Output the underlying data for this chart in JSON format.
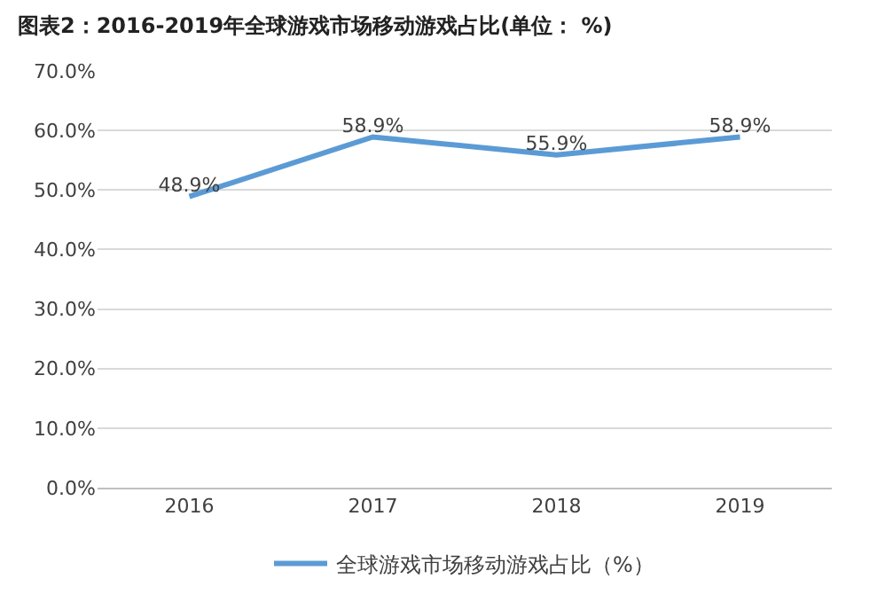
{
  "chart_data": {
    "type": "line",
    "title": "图表2：2016-2019年全球游戏市场移动游戏占比(单位： %)",
    "categories": [
      "2016",
      "2017",
      "2018",
      "2019"
    ],
    "series": [
      {
        "name": "全球游戏市场移动游戏占比（%）",
        "color": "#5b9bd5",
        "values": [
          48.9,
          58.9,
          55.9,
          58.9
        ],
        "value_labels": [
          "48.9%",
          "58.9%",
          "55.9%",
          "58.9%"
        ]
      }
    ],
    "ylim": [
      0,
      70
    ],
    "yticks": [
      {
        "value": 0,
        "label": "0.0%"
      },
      {
        "value": 10,
        "label": "10.0%"
      },
      {
        "value": 20,
        "label": "20.0%"
      },
      {
        "value": 30,
        "label": "30.0%"
      },
      {
        "value": 40,
        "label": "40.0%"
      },
      {
        "value": 50,
        "label": "50.0%"
      },
      {
        "value": 60,
        "label": "60.0%"
      },
      {
        "value": 70,
        "label": "70.0%"
      }
    ],
    "grid": "y",
    "legend": "bottom",
    "marker": "none",
    "line_style": "solid"
  }
}
